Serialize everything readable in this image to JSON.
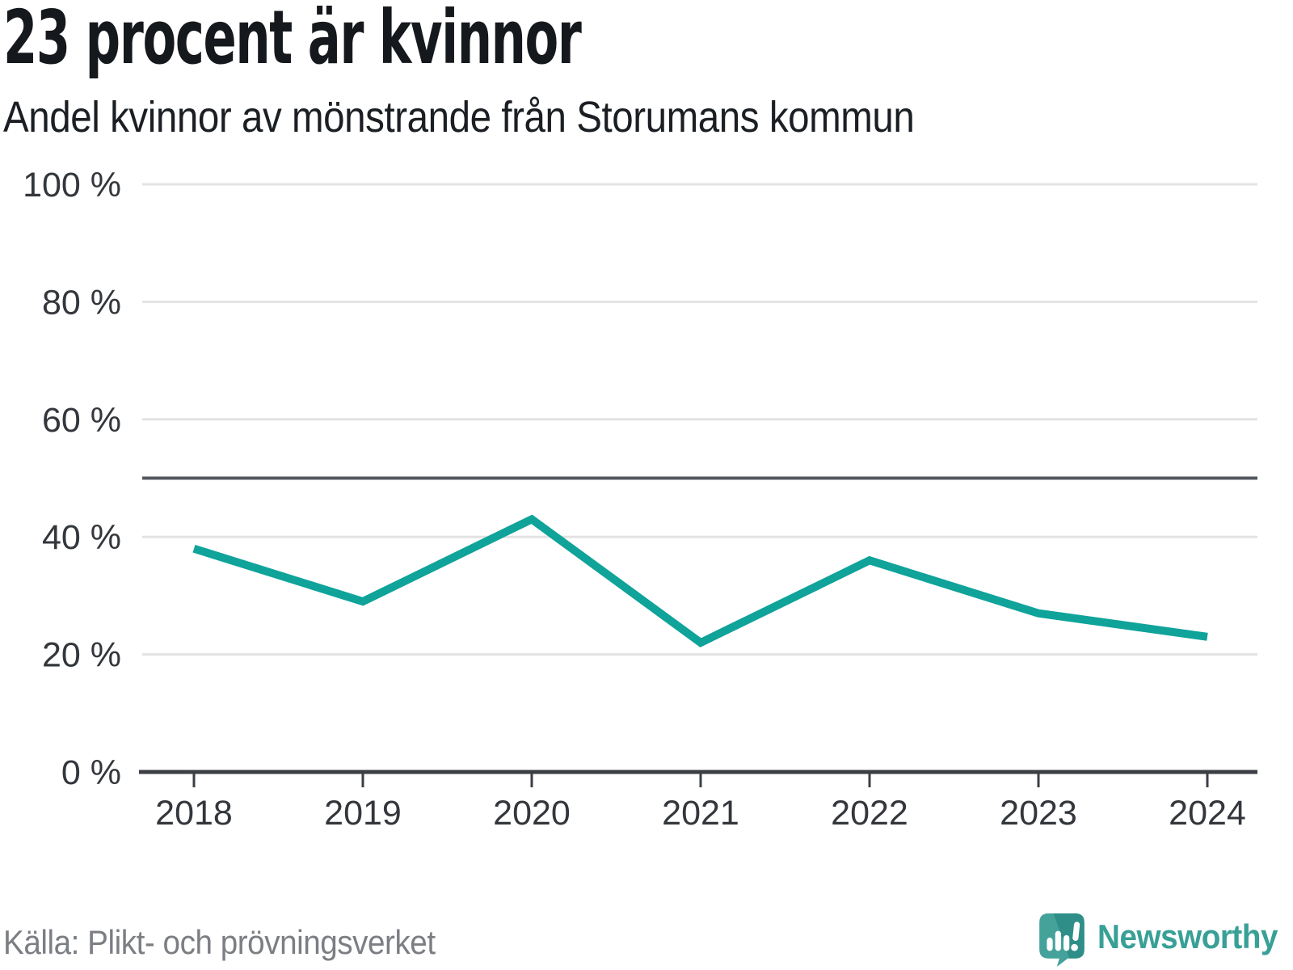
{
  "header": {
    "title": "23 procent är kvinnor",
    "subtitle": "Andel kvinnor av mönstrande från Storumans kommun"
  },
  "chart_data": {
    "type": "line",
    "title": "23 procent är kvinnor",
    "subtitle": "Andel kvinnor av mönstrande från Storumans kommun",
    "categories": [
      "2018",
      "2019",
      "2020",
      "2021",
      "2022",
      "2023",
      "2024"
    ],
    "series": [
      {
        "name": "Andel kvinnor av mönstrande",
        "values": [
          38,
          29,
          43,
          22,
          36,
          27,
          23
        ]
      }
    ],
    "unit": "%",
    "xlabel": "",
    "ylabel": "",
    "ylim": [
      0,
      100
    ],
    "yticks": [
      0,
      20,
      40,
      60,
      80,
      100
    ],
    "ytick_labels": [
      "0 %",
      "20 %",
      "40 %",
      "60 %",
      "80 %",
      "100 %"
    ],
    "reference_line": 50,
    "grid": "horizontal",
    "legend": "none"
  },
  "footer": {
    "source": "Källa: Plikt- och prövningsverket",
    "brand": "Newsworthy"
  },
  "colors": {
    "line": "#0fa39a",
    "gridline": "#e3e3e3",
    "reference_line": "#55595f",
    "axis": "#3b3f45",
    "tick_label": "#33373c",
    "title": "#15181c",
    "subtitle": "#1b1f24",
    "source": "#7b7e83",
    "logo_teal": "#44a29b",
    "logo_dark_teal": "#2f8e88",
    "brand_text": "#38a096"
  }
}
